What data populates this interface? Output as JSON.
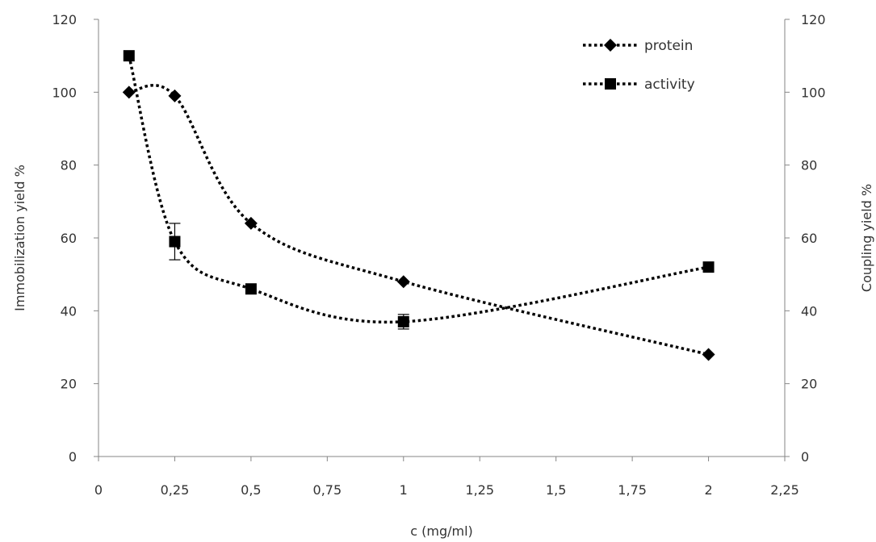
{
  "chart_data": {
    "type": "line",
    "xlabel": "c (mg/ml)",
    "ylabel_left": "Immobilization  yield %",
    "ylabel_right": "Coupling yield %",
    "xlim": [
      0,
      2.25
    ],
    "ylim_left": [
      0,
      120
    ],
    "ylim_right": [
      0,
      120
    ],
    "x_ticks": [
      "0",
      "0,25",
      "0,5",
      "0,75",
      "1",
      "1,25",
      "1,5",
      "1,75",
      "2",
      "2,25"
    ],
    "y_ticks_left": [
      "0",
      "20",
      "40",
      "60",
      "80",
      "100",
      "120"
    ],
    "y_ticks_right": [
      "0",
      "20",
      "40",
      "60",
      "80",
      "100",
      "120"
    ],
    "grid": false,
    "legend": "top-right",
    "series": [
      {
        "name": "protein",
        "marker": "diamond",
        "line": "dotted-smooth",
        "color": "#000000",
        "axis": "left",
        "x": [
          0.1,
          0.25,
          0.5,
          1,
          2
        ],
        "y": [
          100,
          99,
          64,
          48,
          28
        ]
      },
      {
        "name": "activity",
        "marker": "square",
        "line": "dotted-smooth",
        "color": "#000000",
        "axis": "right",
        "x": [
          0.1,
          0.25,
          0.5,
          1,
          2
        ],
        "y": [
          110,
          59,
          46,
          37,
          52
        ],
        "error": [
          0,
          5,
          0,
          2,
          0
        ]
      }
    ]
  }
}
